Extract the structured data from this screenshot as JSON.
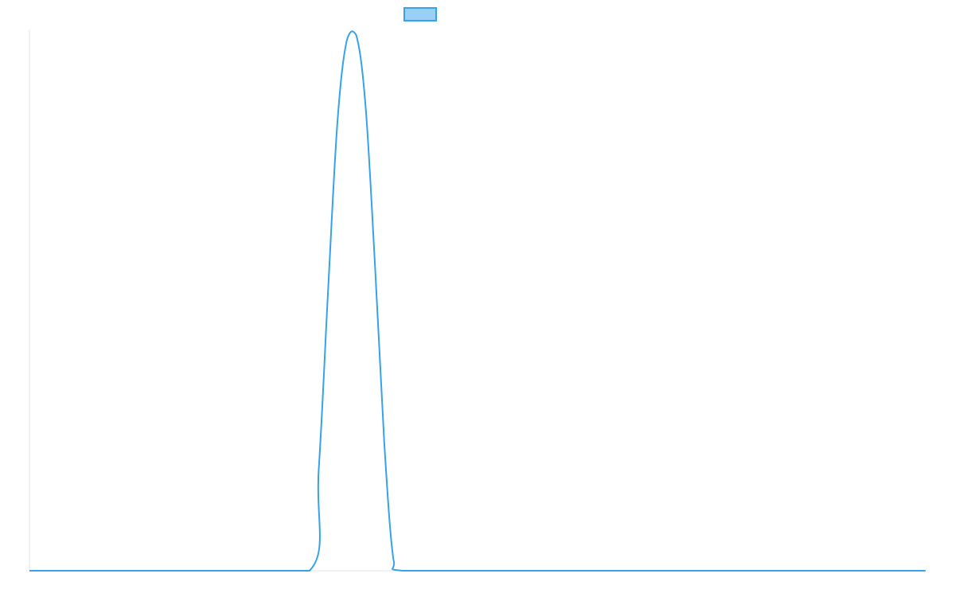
{
  "chart_data": {
    "type": "line",
    "title": "",
    "xlabel": "",
    "ylabel": "",
    "x": [
      0,
      10,
      20,
      30,
      31,
      32,
      33,
      34,
      35,
      36,
      37,
      38,
      39,
      40,
      50,
      60,
      70,
      80,
      90,
      96
    ],
    "xlim": [
      0,
      96
    ],
    "ylim": [
      0,
      1
    ],
    "series": [
      {
        "values": [
          0,
          0,
          0,
          0,
          0.19,
          0.52,
          0.83,
          0.98,
          0.99,
          0.86,
          0.57,
          0.24,
          0.02,
          0,
          0,
          0,
          0,
          0,
          0,
          0
        ]
      }
    ],
    "grid": false,
    "legend": "top-center",
    "colors": {
      "line": "#36a2eb",
      "legend_fill": "#9ad0f5",
      "axis": "#e5e5e5"
    }
  }
}
